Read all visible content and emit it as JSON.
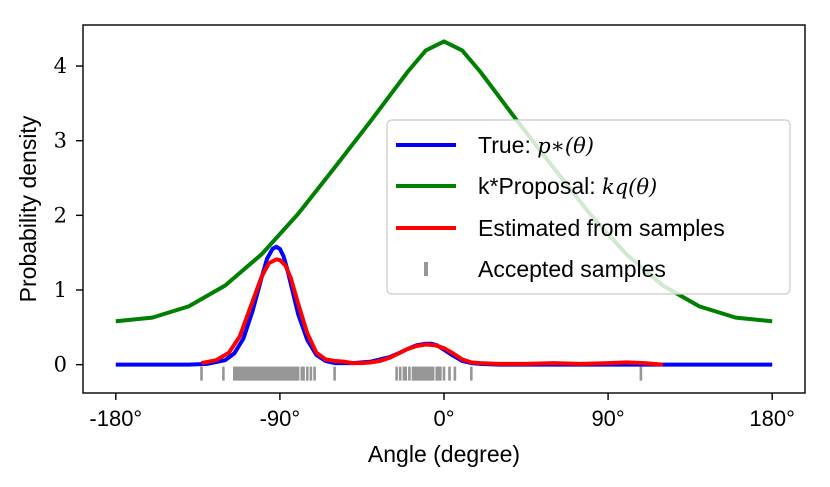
{
  "chart_data": {
    "type": "line",
    "title": "",
    "xlabel": "Angle (degree)",
    "ylabel": "Probability density",
    "xlim": [
      -198,
      198
    ],
    "ylim": [
      -0.38,
      4.55
    ],
    "grid": false,
    "legend_position": "center-right",
    "xticks": [
      {
        "value": -180,
        "label": "-180°"
      },
      {
        "value": -90,
        "label": "-90°"
      },
      {
        "value": 0,
        "label": "0°"
      },
      {
        "value": 90,
        "label": "90°"
      },
      {
        "value": 180,
        "label": "180°"
      }
    ],
    "yticks": [
      {
        "value": 0,
        "label": "0"
      },
      {
        "value": 1,
        "label": "1"
      },
      {
        "value": 2,
        "label": "2"
      },
      {
        "value": 3,
        "label": "3"
      },
      {
        "value": 4,
        "label": "4"
      }
    ],
    "series": [
      {
        "name": "True",
        "legend_text": "True: ",
        "legend_math": "p∗(θ)",
        "color": "#0000ff",
        "x": [
          -180,
          -150,
          -140,
          -130,
          -120,
          -115,
          -110,
          -105,
          -100,
          -97,
          -94,
          -92,
          -90,
          -88,
          -86,
          -83,
          -80,
          -75,
          -70,
          -65,
          -60,
          -50,
          -40,
          -30,
          -25,
          -20,
          -15,
          -10,
          -7,
          -4,
          0,
          5,
          10,
          15,
          20,
          30,
          50,
          70,
          90,
          110,
          130,
          150,
          180
        ],
        "y": [
          0,
          0,
          0,
          0.01,
          0.06,
          0.15,
          0.35,
          0.72,
          1.17,
          1.42,
          1.55,
          1.58,
          1.55,
          1.45,
          1.28,
          0.98,
          0.68,
          0.33,
          0.13,
          0.05,
          0.02,
          0.02,
          0.04,
          0.1,
          0.15,
          0.21,
          0.26,
          0.28,
          0.28,
          0.26,
          0.2,
          0.12,
          0.05,
          0.02,
          0.01,
          0,
          0,
          0,
          0,
          0,
          0,
          0,
          0
        ]
      },
      {
        "name": "k*Proposal",
        "legend_text": "k*Proposal: ",
        "legend_math": "kq(θ)",
        "color": "#008000",
        "x": [
          -180,
          -160,
          -140,
          -120,
          -100,
          -80,
          -60,
          -40,
          -20,
          -10,
          0,
          10,
          20,
          40,
          60,
          80,
          100,
          120,
          140,
          160,
          180
        ],
        "y": [
          0.58,
          0.63,
          0.78,
          1.06,
          1.48,
          2.02,
          2.64,
          3.27,
          3.92,
          4.21,
          4.33,
          4.21,
          3.92,
          3.27,
          2.64,
          2.02,
          1.48,
          1.06,
          0.78,
          0.63,
          0.58
        ]
      },
      {
        "name": "Estimated from samples",
        "legend_text": "Estimated from samples",
        "legend_math": "",
        "color": "#ff0000",
        "x": [
          -133,
          -125,
          -118,
          -112,
          -106,
          -100,
          -96,
          -92,
          -90,
          -87,
          -84,
          -80,
          -75,
          -70,
          -65,
          -60,
          -55,
          -50,
          -45,
          -40,
          -35,
          -30,
          -25,
          -20,
          -15,
          -10,
          -5,
          0,
          5,
          10,
          15,
          20,
          30,
          45,
          60,
          75,
          90,
          100,
          110,
          120
        ],
        "y": [
          0.02,
          0.06,
          0.16,
          0.38,
          0.78,
          1.18,
          1.36,
          1.41,
          1.4,
          1.33,
          1.16,
          0.82,
          0.42,
          0.16,
          0.07,
          0.05,
          0.04,
          0.02,
          0.02,
          0.03,
          0.05,
          0.09,
          0.15,
          0.21,
          0.25,
          0.27,
          0.26,
          0.22,
          0.15,
          0.07,
          0.03,
          0.02,
          0.01,
          0.01,
          0.02,
          0.01,
          0.02,
          0.03,
          0.02,
          0.0
        ]
      }
    ],
    "rug": {
      "name": "Accepted samples",
      "legend_text": "Accepted samples",
      "color": "#969696",
      "y": -0.12,
      "x": [
        -133,
        -121,
        -115,
        -114,
        -113,
        -112,
        -111,
        -110,
        -109,
        -108,
        -107,
        -106,
        -105,
        -104,
        -103,
        -102,
        -101,
        -100,
        -99,
        -98,
        -97,
        -96,
        -95,
        -94,
        -93,
        -92,
        -91,
        -90,
        -89,
        -88,
        -87,
        -86,
        -85,
        -84,
        -83,
        -82,
        -81,
        -80,
        -78,
        -77,
        -75,
        -73,
        -71,
        -60,
        -26,
        -24,
        -22,
        -21,
        -19,
        -17,
        -16,
        -15,
        -14,
        -13,
        -12,
        -11,
        -10,
        -9,
        -8,
        -7,
        -6,
        -4,
        -3,
        -2,
        0,
        3,
        6,
        15,
        108
      ]
    }
  }
}
